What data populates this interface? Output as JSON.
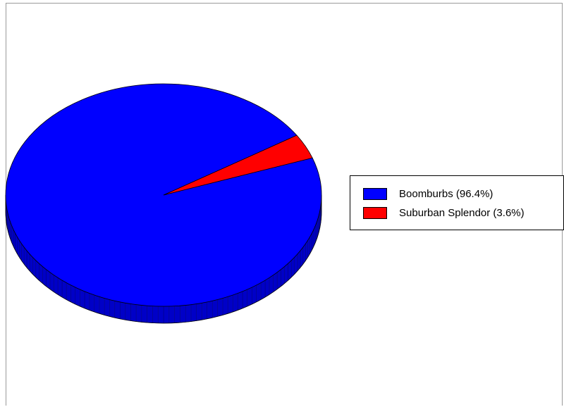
{
  "chart_data": {
    "type": "pie",
    "style": "3d",
    "title": "",
    "slices": [
      {
        "name": "Boomburbs",
        "label": "Boomburbs (96.4%)",
        "value": 96.4,
        "color": "#0000ff"
      },
      {
        "name": "Suburban Splendor",
        "label": "Suburban Splendor (3.6%)",
        "value": 3.6,
        "color": "#ff0000"
      }
    ],
    "legend_placement": "right"
  }
}
